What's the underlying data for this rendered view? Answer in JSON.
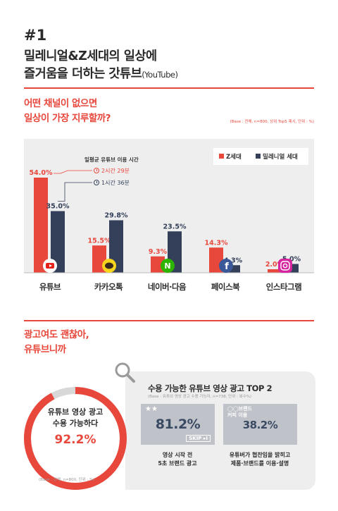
{
  "header": {
    "issue": "#1",
    "title_line1": "밀레니얼&Z세대의 일상에",
    "title_line2": "즐거움을 더하는 갓튜브",
    "title_suffix": "(YouTube)"
  },
  "section1": {
    "question_line1": "어떤 채널이 없으면",
    "question_line2": "일상이 가장 지루할까?",
    "base_note": "(Base : 전체, n=800, 상위 Top5 제시, 단위 : %)"
  },
  "chart_data": {
    "type": "bar",
    "categories": [
      "유튜브",
      "카카오톡",
      "네이버·다음",
      "페이스북",
      "인스타그램"
    ],
    "series": [
      {
        "name": "Z세대",
        "values": [
          54.0,
          15.5,
          9.3,
          14.3,
          2.0
        ]
      },
      {
        "name": "밀레니얼 세대",
        "values": [
          35.0,
          29.8,
          23.5,
          4.3,
          5.0
        ]
      }
    ],
    "value_labels": [
      [
        "54.0%",
        "15.5%",
        "9.3%",
        "14.3%",
        "2.0%"
      ],
      [
        "35.0%",
        "29.8%",
        "23.5%",
        "4.3%",
        "5.0%"
      ]
    ],
    "ylim": [
      0,
      60
    ],
    "legend_position": "top-right",
    "colors": {
      "z": "#e8473c",
      "millennial": "#34405a"
    },
    "annotation": {
      "title": "일평균 유튜브 이용 시간",
      "z_time": "2시간 29분",
      "millennial_time": "1시간 36분"
    }
  },
  "section2": {
    "question_line1": "광고여도 괜찮아,",
    "question_line2": "유튜브니까",
    "donut": {
      "value": 92.2,
      "label_line1": "유튜브 영상 광고",
      "label_line2": "수용 가능하다",
      "pct_text": "92.2%",
      "base_note": "(Base : 전체, n=800, 단위 : %)"
    },
    "top2": {
      "title": "수용 가능한 유튜브 영상 광고 TOP 2",
      "base_note": "(Base : 유튜브 영상 광고 수용 가능자, n=738, 단위 : 복수%)",
      "items": [
        {
          "value": "81.2%",
          "caption_line1": "영상 시작 전",
          "caption_line2": "5초 브랜드 광고",
          "deco": "SKIP ▸I"
        },
        {
          "value": "38.2%",
          "caption_line1": "유튜버가 협찬임을 밝히고",
          "caption_line2": "제품·브랜드를 이용·설명",
          "deco": "◯◯브랜드 커피 이용"
        }
      ]
    }
  },
  "icons": [
    "youtube-icon",
    "kakaotalk-icon",
    "naver-icon",
    "facebook-icon",
    "instagram-icon",
    "magnifier-icon",
    "clock-icon"
  ]
}
